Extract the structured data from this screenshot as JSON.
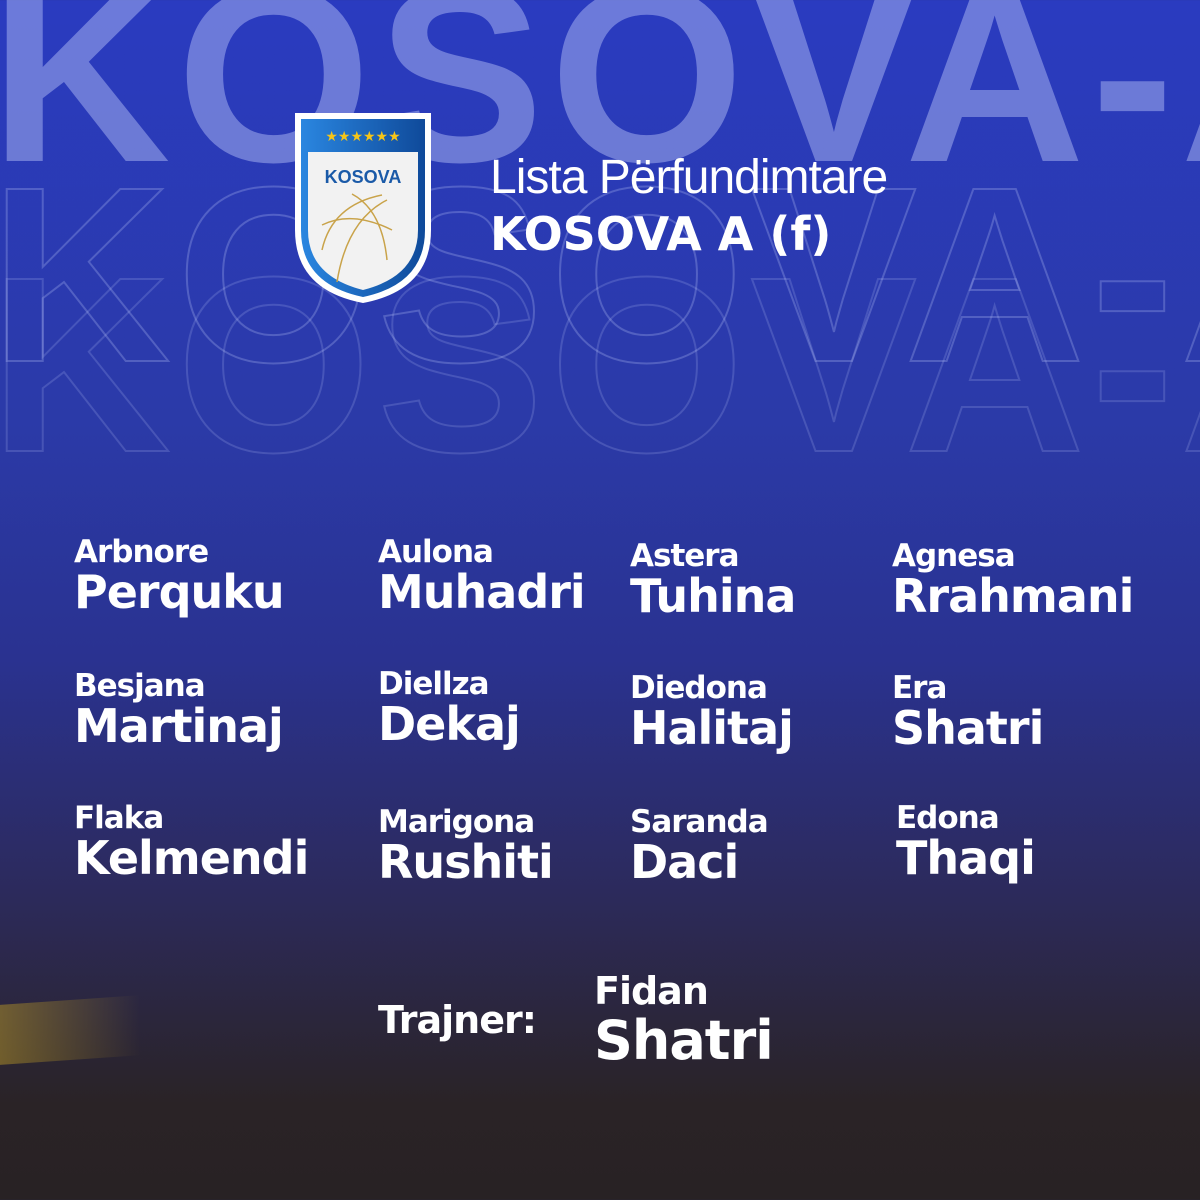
{
  "watermark": "KOSOVA-A",
  "crest": {
    "label": "KOSOVA",
    "stars": 6,
    "colors": {
      "blue": "#1d5fb8",
      "star": "#f5c518",
      "ball": "#c9a34a"
    }
  },
  "header": {
    "line1": "Lista Përfundimtare",
    "line2": "KOSOVA A (f)"
  },
  "players": [
    {
      "first": "Arbnore",
      "last": "Perquku"
    },
    {
      "first": "Aulona",
      "last": "Muhadri"
    },
    {
      "first": "Astera",
      "last": "Tuhina"
    },
    {
      "first": "Agnesa",
      "last": "Rrahmani"
    },
    {
      "first": "Besjana",
      "last": "Martinaj"
    },
    {
      "first": "Diellza",
      "last": "Dekaj"
    },
    {
      "first": "Diedona",
      "last": "Halitaj"
    },
    {
      "first": "Era",
      "last": "Shatri"
    },
    {
      "first": "Flaka",
      "last": "Kelmendi"
    },
    {
      "first": "Marigona",
      "last": "Rushiti"
    },
    {
      "first": "Saranda",
      "last": "Daci"
    },
    {
      "first": "Edona",
      "last": "Thaqi"
    }
  ],
  "coach": {
    "label": "Trajner:",
    "first": "Fidan",
    "last": "Shatri"
  }
}
